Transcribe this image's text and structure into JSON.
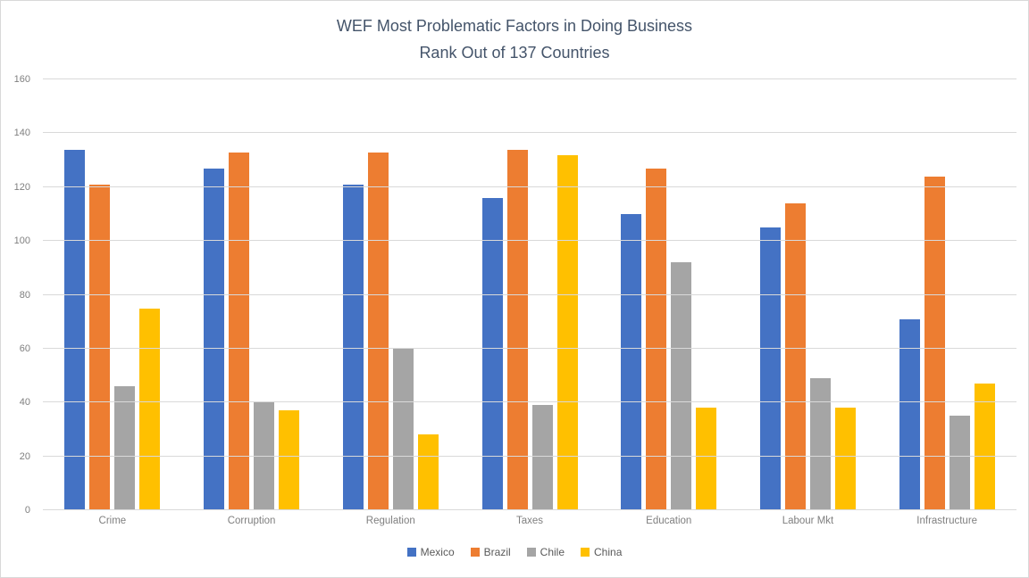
{
  "chart_data": {
    "type": "bar",
    "title": "WEF Most Problematic Factors in Doing Business",
    "subtitle": "Rank Out of 137 Countries",
    "categories": [
      "Crime",
      "Corruption",
      "Regulation",
      "Taxes",
      "Education",
      "Labour Mkt",
      "Infrastructure"
    ],
    "series": [
      {
        "name": "Mexico",
        "color": "#4472C4",
        "values": [
          134,
          127,
          121,
          116,
          110,
          105,
          71
        ]
      },
      {
        "name": "Brazil",
        "color": "#ED7D31",
        "values": [
          121,
          133,
          133,
          134,
          127,
          114,
          124
        ]
      },
      {
        "name": "Chile",
        "color": "#A5A5A5",
        "values": [
          46,
          40,
          60,
          39,
          92,
          49,
          35
        ]
      },
      {
        "name": "China",
        "color": "#FFC000",
        "values": [
          75,
          37,
          28,
          132,
          38,
          38,
          47
        ]
      }
    ],
    "ylim": [
      0,
      160
    ],
    "ytick_step": 20,
    "grid": true,
    "legend_position": "bottom",
    "colors": {
      "gridline": "#D9D9D9",
      "axis_text": "#7F7F7F",
      "title_text": "#44546A",
      "legend_text": "#595959",
      "chart_border": "#D9D9D9"
    }
  }
}
